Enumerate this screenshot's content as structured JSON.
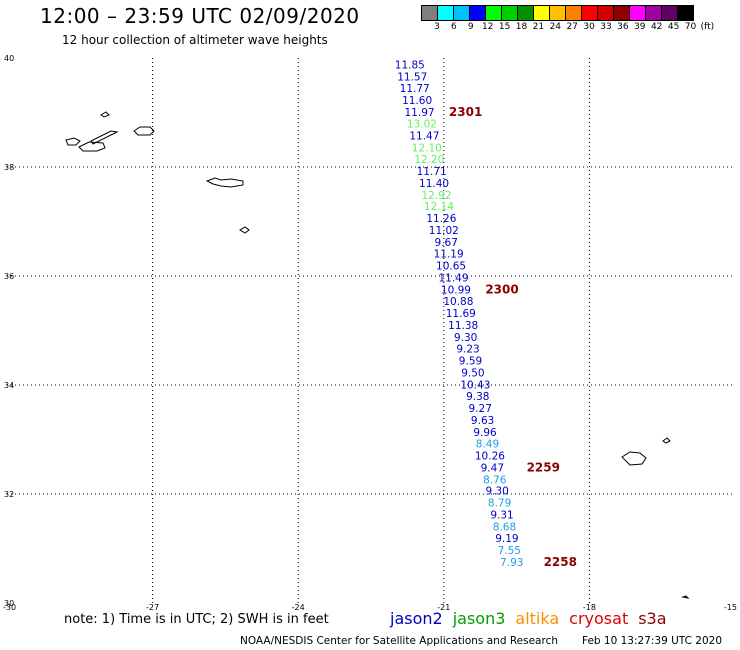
{
  "header": {
    "title": "12:00 – 23:59 UTC 02/09/2020",
    "subtitle": "12 hour collection of altimeter wave heights"
  },
  "colorbar": {
    "colors": [
      "#7f7f7f",
      "#00ffff",
      "#00c0ff",
      "#0000ff",
      "#00ff00",
      "#00d000",
      "#009000",
      "#ffff00",
      "#ffc000",
      "#ff8000",
      "#ff0000",
      "#d00000",
      "#900000",
      "#ff00ff",
      "#a000a0",
      "#600060",
      "#000000"
    ],
    "labels": [
      "3",
      "6",
      "9",
      "12",
      "15",
      "18",
      "21",
      "24",
      "27",
      "30",
      "33",
      "36",
      "39",
      "42",
      "45",
      "70",
      "(ft)"
    ]
  },
  "map": {
    "lat_labels": [
      "40",
      "38",
      "36",
      "34",
      "32",
      "30"
    ],
    "lon_labels": [
      "-30",
      "-27",
      "-24",
      "-21",
      "-18",
      "-15"
    ]
  },
  "chart_data": {
    "type": "scatter",
    "xlim": [
      -30,
      -15
    ],
    "ylim": [
      30,
      40
    ],
    "grid": true,
    "series_colors": {
      "jason2": "#0000c8",
      "jason3": "#00b000",
      "altika": "#ff8c00",
      "cryosat": "#e00000",
      "s3a": "#8b0000"
    },
    "value_colors": {
      "blue": "#0000c8",
      "cyan": "#1aa0e6",
      "green": "#66ee66"
    },
    "points": [
      {
        "lon": -21.7,
        "lat": 39.88,
        "value": "11.85",
        "color": "blue"
      },
      {
        "lon": -21.65,
        "lat": 39.66,
        "value": "11.57",
        "color": "blue"
      },
      {
        "lon": -21.6,
        "lat": 39.45,
        "value": "11.77",
        "color": "blue"
      },
      {
        "lon": -21.55,
        "lat": 39.23,
        "value": "11.60",
        "color": "blue"
      },
      {
        "lon": -21.5,
        "lat": 39.01,
        "value": "11.97",
        "color": "blue"
      },
      {
        "lon": -21.45,
        "lat": 38.8,
        "value": "13.02",
        "color": "green"
      },
      {
        "lon": -21.4,
        "lat": 38.58,
        "value": "11.47",
        "color": "blue"
      },
      {
        "lon": -21.35,
        "lat": 38.36,
        "value": "12.10",
        "color": "green"
      },
      {
        "lon": -21.3,
        "lat": 38.15,
        "value": "12.20",
        "color": "green"
      },
      {
        "lon": -21.25,
        "lat": 37.93,
        "value": "11.71",
        "color": "blue"
      },
      {
        "lon": -21.2,
        "lat": 37.71,
        "value": "11.40",
        "color": "blue"
      },
      {
        "lon": -21.15,
        "lat": 37.49,
        "value": "12.92",
        "color": "green"
      },
      {
        "lon": -21.1,
        "lat": 37.28,
        "value": "12.14",
        "color": "green"
      },
      {
        "lon": -21.05,
        "lat": 37.06,
        "value": "11.26",
        "color": "blue"
      },
      {
        "lon": -21.0,
        "lat": 36.84,
        "value": "11.02",
        "color": "blue"
      },
      {
        "lon": -20.95,
        "lat": 36.62,
        "value": "9.67",
        "color": "blue"
      },
      {
        "lon": -20.9,
        "lat": 36.41,
        "value": "11.19",
        "color": "blue"
      },
      {
        "lon": -20.85,
        "lat": 36.19,
        "value": "10.65",
        "color": "blue"
      },
      {
        "lon": -20.8,
        "lat": 35.97,
        "value": "11.49",
        "color": "blue"
      },
      {
        "lon": -20.75,
        "lat": 35.75,
        "value": "10.99",
        "color": "blue"
      },
      {
        "lon": -20.7,
        "lat": 35.54,
        "value": "10.88",
        "color": "blue"
      },
      {
        "lon": -20.65,
        "lat": 35.32,
        "value": "11.69",
        "color": "blue"
      },
      {
        "lon": -20.6,
        "lat": 35.1,
        "value": "11.38",
        "color": "blue"
      },
      {
        "lon": -20.55,
        "lat": 34.88,
        "value": "9.30",
        "color": "blue"
      },
      {
        "lon": -20.5,
        "lat": 34.67,
        "value": "9.23",
        "color": "blue"
      },
      {
        "lon": -20.45,
        "lat": 34.45,
        "value": "9.59",
        "color": "blue"
      },
      {
        "lon": -20.4,
        "lat": 34.23,
        "value": "9.50",
        "color": "blue"
      },
      {
        "lon": -20.35,
        "lat": 34.01,
        "value": "10.43",
        "color": "blue"
      },
      {
        "lon": -20.3,
        "lat": 33.8,
        "value": "9.38",
        "color": "blue"
      },
      {
        "lon": -20.25,
        "lat": 33.58,
        "value": "9.27",
        "color": "blue"
      },
      {
        "lon": -20.2,
        "lat": 33.36,
        "value": "9.63",
        "color": "blue"
      },
      {
        "lon": -20.15,
        "lat": 33.14,
        "value": "9.96",
        "color": "blue"
      },
      {
        "lon": -20.1,
        "lat": 32.93,
        "value": "8.49",
        "color": "cyan"
      },
      {
        "lon": -20.05,
        "lat": 32.71,
        "value": "10.26",
        "color": "blue"
      },
      {
        "lon": -20.0,
        "lat": 32.49,
        "value": "9.47",
        "color": "blue"
      },
      {
        "lon": -19.95,
        "lat": 32.27,
        "value": "8.76",
        "color": "cyan"
      },
      {
        "lon": -19.9,
        "lat": 32.06,
        "value": "9.30",
        "color": "blue"
      },
      {
        "lon": -19.85,
        "lat": 31.84,
        "value": "8.79",
        "color": "cyan"
      },
      {
        "lon": -19.8,
        "lat": 31.62,
        "value": "9.31",
        "color": "blue"
      },
      {
        "lon": -19.75,
        "lat": 31.4,
        "value": "8.68",
        "color": "cyan"
      },
      {
        "lon": -19.7,
        "lat": 31.19,
        "value": "9.19",
        "color": "blue"
      },
      {
        "lon": -19.65,
        "lat": 30.97,
        "value": "7.55",
        "color": "cyan"
      },
      {
        "lon": -19.6,
        "lat": 30.75,
        "value": "7.93",
        "color": "cyan"
      }
    ],
    "time_labels": [
      {
        "lon": -20.55,
        "lat": 39.01,
        "text": "2301"
      },
      {
        "lon": -19.8,
        "lat": 35.75,
        "text": "2300"
      },
      {
        "lon": -18.95,
        "lat": 32.49,
        "text": "2259"
      },
      {
        "lon": -18.6,
        "lat": 30.75,
        "text": "2258"
      }
    ]
  },
  "legend": {
    "note": "note: 1) Time is in UTC; 2) SWH is in feet",
    "satellites": [
      {
        "name": "jason2",
        "color": "#0000c8"
      },
      {
        "name": "jason3",
        "color": "#00a000"
      },
      {
        "name": "altika",
        "color": "#ff8c00"
      },
      {
        "name": "cryosat",
        "color": "#e00000"
      },
      {
        "name": "s3a",
        "color": "#8b0000"
      }
    ]
  },
  "footer": {
    "credit": "NOAA/NESDIS Center for Satellite Applications and Research",
    "timestamp": "Feb 10 13:27:39 UTC 2020"
  }
}
